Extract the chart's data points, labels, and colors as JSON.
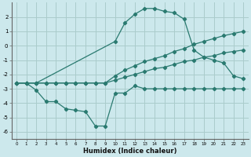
{
  "title": "",
  "xlabel": "Humidex (Indice chaleur)",
  "background_color": "#cce8ec",
  "grid_color": "#aacccc",
  "line_color": "#2a7a70",
  "xlim": [
    -0.5,
    23.5
  ],
  "ylim": [
    -6.5,
    3.0
  ],
  "xticks": [
    0,
    1,
    2,
    3,
    4,
    5,
    6,
    7,
    8,
    9,
    10,
    11,
    12,
    13,
    14,
    15,
    16,
    17,
    18,
    19,
    20,
    21,
    22,
    23
  ],
  "yticks": [
    2,
    1,
    0,
    -1,
    -2,
    -3,
    -4,
    -5,
    -6
  ],
  "line_upper_x": [
    0,
    1,
    2,
    10,
    11,
    12,
    13,
    14,
    15,
    16,
    17,
    18,
    19,
    20,
    21,
    22,
    23
  ],
  "line_upper_y": [
    -2.6,
    -2.6,
    -2.6,
    0.3,
    1.6,
    2.2,
    2.6,
    2.6,
    2.4,
    2.3,
    1.85,
    -0.3,
    -0.8,
    -1.0,
    -1.2,
    -2.1,
    -2.3
  ],
  "line_mid1_x": [
    0,
    1,
    2,
    3,
    4,
    5,
    6,
    7,
    8,
    9,
    10,
    11,
    12,
    13,
    14,
    15,
    16,
    17,
    18,
    19,
    20,
    21,
    22,
    23
  ],
  "line_mid1_y": [
    -2.6,
    -2.6,
    -2.6,
    -2.6,
    -2.6,
    -2.6,
    -2.6,
    -2.6,
    -2.6,
    -2.6,
    -2.1,
    -1.7,
    -1.4,
    -1.1,
    -0.9,
    -0.7,
    -0.4,
    -0.2,
    0.1,
    0.3,
    0.5,
    0.7,
    0.85,
    1.0
  ],
  "line_mid2_x": [
    0,
    1,
    2,
    3,
    4,
    5,
    6,
    7,
    8,
    9,
    10,
    11,
    12,
    13,
    14,
    15,
    16,
    17,
    18,
    19,
    20,
    21,
    22,
    23
  ],
  "line_mid2_y": [
    -2.6,
    -2.6,
    -2.6,
    -2.6,
    -2.6,
    -2.6,
    -2.6,
    -2.6,
    -2.6,
    -2.6,
    -2.4,
    -2.2,
    -2.0,
    -1.8,
    -1.6,
    -1.5,
    -1.3,
    -1.1,
    -1.0,
    -0.8,
    -0.7,
    -0.5,
    -0.4,
    -0.3
  ],
  "line_lower_x": [
    0,
    1,
    2,
    3,
    4,
    5,
    6,
    7,
    8,
    9,
    10,
    11,
    12,
    13,
    14,
    15,
    16,
    17,
    18,
    19,
    20,
    21,
    22,
    23
  ],
  "line_lower_y": [
    -2.6,
    -2.6,
    -3.1,
    -3.9,
    -3.9,
    -4.4,
    -4.5,
    -4.6,
    -5.6,
    -5.6,
    -3.3,
    -3.3,
    -2.8,
    -3.0,
    -3.0,
    -3.0,
    -3.0,
    -3.0,
    -3.0,
    -3.0,
    -3.0,
    -3.0,
    -3.0,
    -3.0
  ]
}
